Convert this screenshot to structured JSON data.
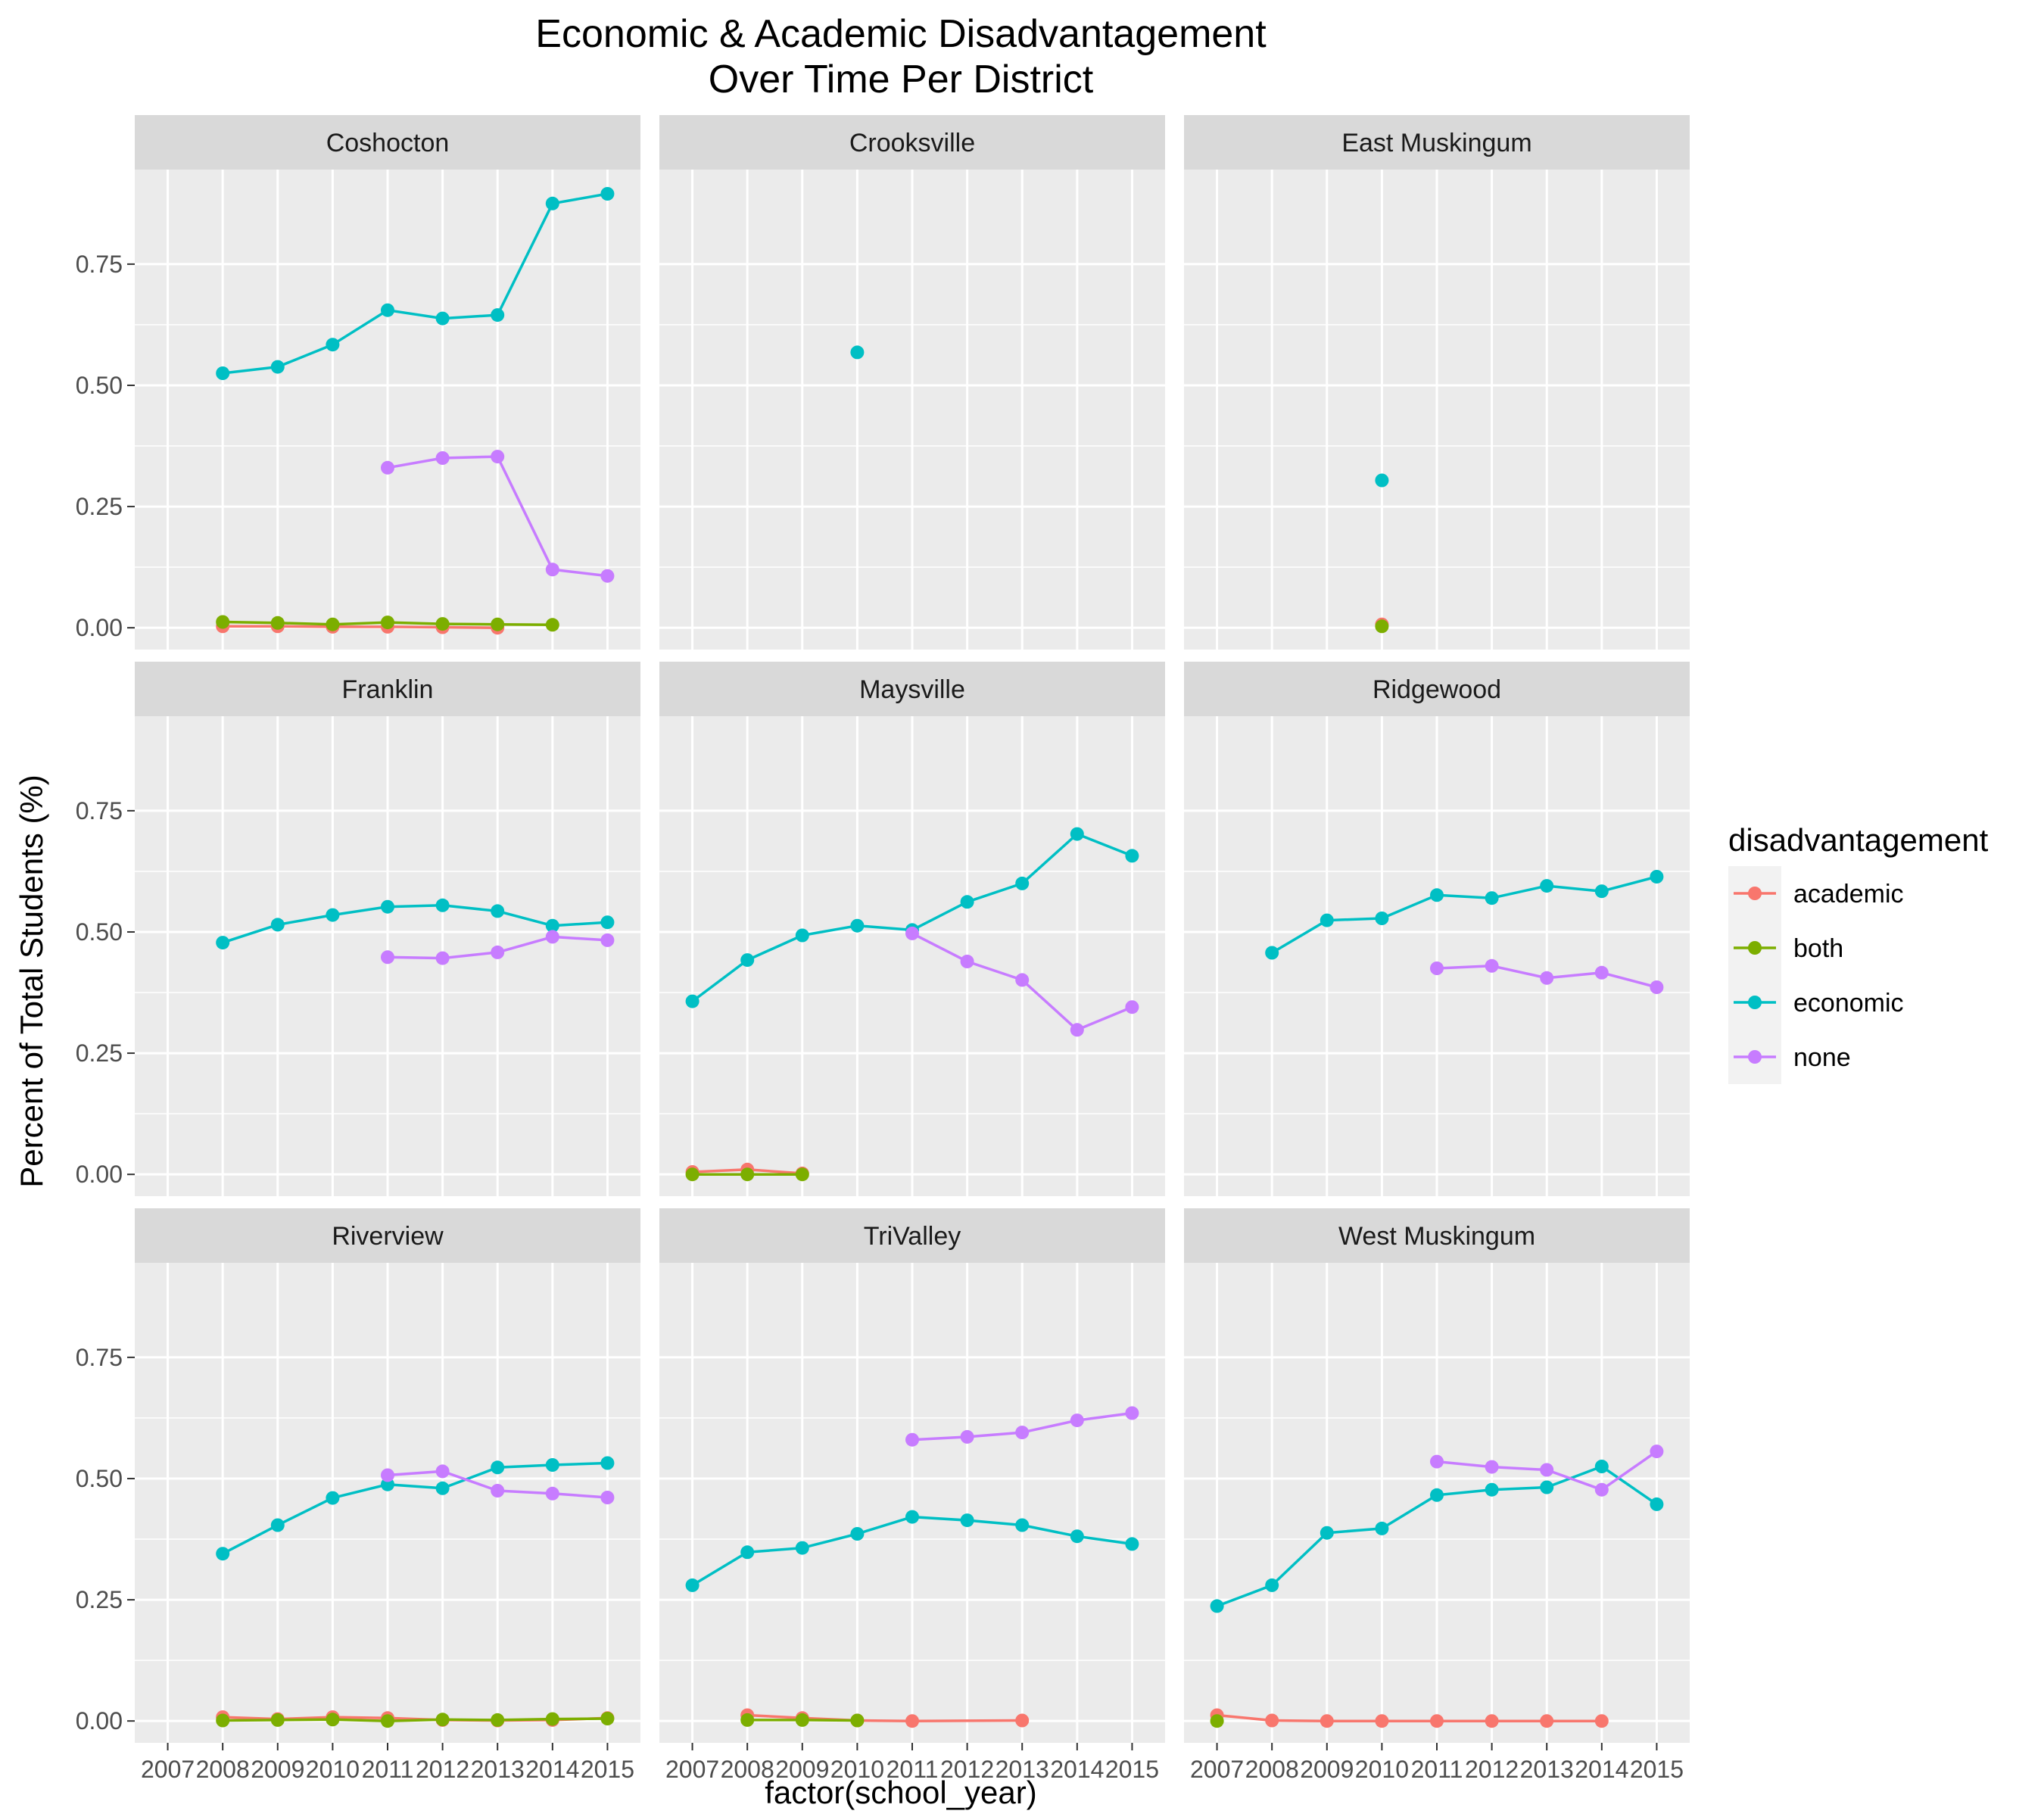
{
  "chart_data": {
    "type": "line",
    "title_lines": [
      "Economic & Academic Disadvantagement",
      "Over Time Per District"
    ],
    "xlabel": "factor(school_year)",
    "ylabel": "Percent of Total Students (%)",
    "x_categories": [
      "2007",
      "2008",
      "2009",
      "2010",
      "2011",
      "2012",
      "2013",
      "2014",
      "2015"
    ],
    "y_ticks": [
      0,
      0.25,
      0.5,
      0.75
    ],
    "y_tick_labels": [
      "0.00",
      "0.25",
      "0.50",
      "0.75"
    ],
    "ylim": [
      -0.045,
      0.945
    ],
    "grid": true,
    "legend": {
      "title": "disadvantagement",
      "position": "right",
      "entries": [
        {
          "key": "academic",
          "label": "academic",
          "color": "#F8766D"
        },
        {
          "key": "both",
          "label": "both",
          "color": "#7CAE00"
        },
        {
          "key": "economic",
          "label": "economic",
          "color": "#00BFC4"
        },
        {
          "key": "none",
          "label": "none",
          "color": "#C77CFF"
        }
      ]
    },
    "series_order": [
      "academic",
      "both",
      "economic",
      "none"
    ],
    "panels": [
      {
        "name": "Coshocton",
        "series": {
          "academic": [
            [
              "2008",
              0.003
            ],
            [
              "2009",
              0.003
            ],
            [
              "2010",
              0.002
            ],
            [
              "2011",
              0.002
            ],
            [
              "2012",
              0.001
            ],
            [
              "2013",
              0.0
            ]
          ],
          "both": [
            [
              "2008",
              0.012
            ],
            [
              "2009",
              0.01
            ],
            [
              "2010",
              0.007
            ],
            [
              "2011",
              0.011
            ],
            [
              "2012",
              0.008
            ],
            [
              "2013",
              0.007
            ],
            [
              "2014",
              0.006
            ]
          ],
          "economic": [
            [
              "2008",
              0.525
            ],
            [
              "2009",
              0.538
            ],
            [
              "2010",
              0.584
            ],
            [
              "2011",
              0.655
            ],
            [
              "2012",
              0.638
            ],
            [
              "2013",
              0.645
            ],
            [
              "2014",
              0.875
            ],
            [
              "2015",
              0.895
            ]
          ],
          "none": [
            [
              "2011",
              0.33
            ],
            [
              "2012",
              0.35
            ],
            [
              "2013",
              0.353
            ],
            [
              "2014",
              0.12
            ],
            [
              "2015",
              0.107
            ]
          ]
        }
      },
      {
        "name": "Crooksville",
        "series": {
          "academic": [],
          "both": [],
          "economic": [
            [
              "2010",
              0.568
            ]
          ],
          "none": []
        }
      },
      {
        "name": "East Muskingum",
        "series": {
          "academic": [
            [
              "2010",
              0.007
            ]
          ],
          "both": [
            [
              "2010",
              0.003
            ]
          ],
          "economic": [
            [
              "2010",
              0.304
            ]
          ],
          "none": []
        }
      },
      {
        "name": "Franklin",
        "series": {
          "academic": [],
          "both": [],
          "economic": [
            [
              "2008",
              0.478
            ],
            [
              "2009",
              0.515
            ],
            [
              "2010",
              0.535
            ],
            [
              "2011",
              0.552
            ],
            [
              "2012",
              0.555
            ],
            [
              "2013",
              0.543
            ],
            [
              "2014",
              0.513
            ],
            [
              "2015",
              0.52
            ]
          ],
          "none": [
            [
              "2011",
              0.448
            ],
            [
              "2012",
              0.446
            ],
            [
              "2013",
              0.458
            ],
            [
              "2014",
              0.49
            ],
            [
              "2015",
              0.483
            ]
          ]
        }
      },
      {
        "name": "Maysville",
        "series": {
          "academic": [
            [
              "2007",
              0.005
            ],
            [
              "2008",
              0.01
            ],
            [
              "2009",
              0.002
            ]
          ],
          "both": [
            [
              "2007",
              0.0
            ],
            [
              "2008",
              0.0
            ],
            [
              "2009",
              0.0
            ]
          ],
          "economic": [
            [
              "2007",
              0.357
            ],
            [
              "2008",
              0.442
            ],
            [
              "2009",
              0.493
            ],
            [
              "2010",
              0.513
            ],
            [
              "2011",
              0.504
            ],
            [
              "2012",
              0.562
            ],
            [
              "2013",
              0.6
            ],
            [
              "2014",
              0.702
            ],
            [
              "2015",
              0.657
            ]
          ],
          "none": [
            [
              "2011",
              0.497
            ],
            [
              "2012",
              0.439
            ],
            [
              "2013",
              0.401
            ],
            [
              "2014",
              0.298
            ],
            [
              "2015",
              0.345
            ]
          ]
        }
      },
      {
        "name": "Ridgewood",
        "series": {
          "academic": [],
          "both": [],
          "economic": [
            [
              "2008",
              0.457
            ],
            [
              "2009",
              0.524
            ],
            [
              "2010",
              0.528
            ],
            [
              "2011",
              0.576
            ],
            [
              "2012",
              0.57
            ],
            [
              "2013",
              0.595
            ],
            [
              "2014",
              0.584
            ],
            [
              "2015",
              0.614
            ]
          ],
          "none": [
            [
              "2011",
              0.425
            ],
            [
              "2012",
              0.43
            ],
            [
              "2013",
              0.405
            ],
            [
              "2014",
              0.416
            ],
            [
              "2015",
              0.386
            ]
          ]
        }
      },
      {
        "name": "Riverview",
        "series": {
          "academic": [
            [
              "2008",
              0.008
            ],
            [
              "2009",
              0.004
            ],
            [
              "2010",
              0.008
            ],
            [
              "2011",
              0.006
            ],
            [
              "2012",
              0.002
            ],
            [
              "2013",
              0.001
            ],
            [
              "2014",
              0.002
            ],
            [
              "2015",
              0.006
            ]
          ],
          "both": [
            [
              "2008",
              0.001
            ],
            [
              "2009",
              0.002
            ],
            [
              "2010",
              0.003
            ],
            [
              "2011",
              0.0
            ],
            [
              "2012",
              0.003
            ],
            [
              "2013",
              0.002
            ],
            [
              "2014",
              0.004
            ],
            [
              "2015",
              0.005
            ]
          ],
          "economic": [
            [
              "2008",
              0.345
            ],
            [
              "2009",
              0.404
            ],
            [
              "2010",
              0.46
            ],
            [
              "2011",
              0.488
            ],
            [
              "2012",
              0.48
            ],
            [
              "2013",
              0.523
            ],
            [
              "2014",
              0.528
            ],
            [
              "2015",
              0.532
            ]
          ],
          "none": [
            [
              "2011",
              0.507
            ],
            [
              "2012",
              0.515
            ],
            [
              "2013",
              0.475
            ],
            [
              "2014",
              0.469
            ],
            [
              "2015",
              0.461
            ]
          ]
        }
      },
      {
        "name": "TriValley",
        "series": {
          "academic": [
            [
              "2008",
              0.012
            ],
            [
              "2009",
              0.006
            ],
            [
              "2010",
              0.001
            ],
            [
              "2011",
              0.0
            ],
            [
              "2013",
              0.001
            ]
          ],
          "both": [
            [
              "2008",
              0.002
            ],
            [
              "2009",
              0.002
            ],
            [
              "2010",
              0.001
            ]
          ],
          "economic": [
            [
              "2007",
              0.28
            ],
            [
              "2008",
              0.348
            ],
            [
              "2009",
              0.357
            ],
            [
              "2010",
              0.386
            ],
            [
              "2011",
              0.421
            ],
            [
              "2012",
              0.414
            ],
            [
              "2013",
              0.404
            ],
            [
              "2014",
              0.381
            ],
            [
              "2015",
              0.365
            ]
          ],
          "none": [
            [
              "2011",
              0.58
            ],
            [
              "2012",
              0.586
            ],
            [
              "2013",
              0.595
            ],
            [
              "2014",
              0.62
            ],
            [
              "2015",
              0.635
            ]
          ]
        }
      },
      {
        "name": "West Muskingum",
        "series": {
          "academic": [
            [
              "2007",
              0.012
            ],
            [
              "2008",
              0.001
            ],
            [
              "2009",
              0.0
            ],
            [
              "2010",
              0.0
            ],
            [
              "2011",
              0.0
            ],
            [
              "2012",
              0.0
            ],
            [
              "2013",
              0.0
            ],
            [
              "2014",
              0.0
            ]
          ],
          "both": [
            [
              "2007",
              0.0
            ]
          ],
          "economic": [
            [
              "2007",
              0.237
            ],
            [
              "2008",
              0.28
            ],
            [
              "2009",
              0.388
            ],
            [
              "2010",
              0.397
            ],
            [
              "2011",
              0.466
            ],
            [
              "2012",
              0.477
            ],
            [
              "2013",
              0.482
            ],
            [
              "2014",
              0.525
            ],
            [
              "2015",
              0.447
            ]
          ],
          "none": [
            [
              "2011",
              0.535
            ],
            [
              "2012",
              0.524
            ],
            [
              "2013",
              0.518
            ],
            [
              "2014",
              0.477
            ],
            [
              "2015",
              0.556
            ]
          ]
        }
      }
    ]
  }
}
